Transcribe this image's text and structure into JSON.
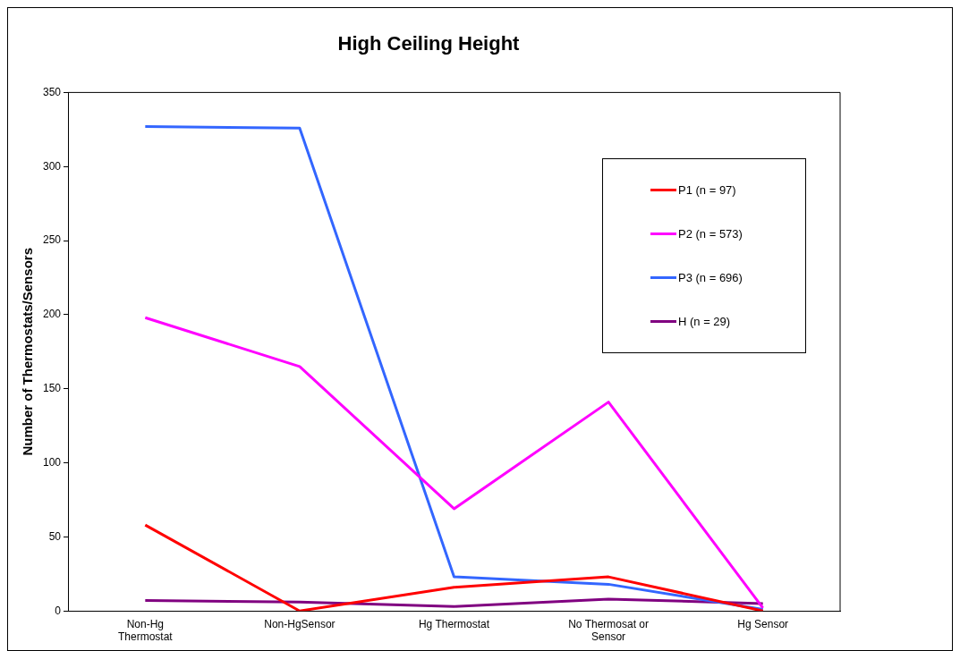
{
  "chart_data": {
    "type": "line",
    "title": "High Ceiling Height",
    "ylabel": "Number of Thermostats/Sensors",
    "categories": [
      "Non-Hg Thermostat",
      "Non-HgSensor",
      "Hg Thermostat",
      "No Thermosat or Sensor",
      "Hg Sensor"
    ],
    "series": [
      {
        "name": "P1 (n = 97)",
        "color": "#ff0000",
        "values": [
          58,
          0,
          16,
          23,
          0
        ]
      },
      {
        "name": "P2 (n = 573)",
        "color": "#ff00ff",
        "values": [
          198,
          165,
          69,
          141,
          2
        ]
      },
      {
        "name": "P3 (n = 696)",
        "color": "#3366ff",
        "values": [
          327,
          326,
          23,
          18,
          1
        ]
      },
      {
        "name": "H (n = 29)",
        "color": "#800080",
        "values": [
          7,
          6,
          3,
          8,
          5
        ]
      }
    ],
    "ylim": [
      0,
      350
    ],
    "yticks": [
      0,
      50,
      100,
      150,
      200,
      250,
      300,
      350
    ],
    "grid": false,
    "legend": "top right",
    "marker": "none",
    "line_style": "solid"
  }
}
